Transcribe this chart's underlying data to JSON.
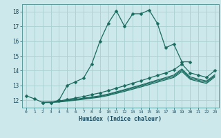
{
  "title": "",
  "xlabel": "Humidex (Indice chaleur)",
  "xlim": [
    -0.5,
    23.5
  ],
  "ylim": [
    11.5,
    18.5
  ],
  "xticks": [
    0,
    1,
    2,
    3,
    4,
    5,
    6,
    7,
    8,
    9,
    10,
    11,
    12,
    13,
    14,
    15,
    16,
    17,
    18,
    19,
    20,
    21,
    22,
    23
  ],
  "yticks": [
    12,
    13,
    14,
    15,
    16,
    17,
    18
  ],
  "background_color": "#cce8ea",
  "grid_color": "#aacfd2",
  "line_color": "#1a6b60",
  "curves": [
    {
      "x": [
        0,
        1,
        2,
        3,
        4,
        5,
        6,
        7,
        8,
        9,
        10,
        11,
        12,
        13,
        14,
        15,
        16,
        17,
        18,
        19,
        20
      ],
      "y": [
        12.3,
        12.1,
        11.85,
        11.85,
        12.0,
        13.0,
        13.25,
        13.5,
        14.45,
        16.0,
        17.2,
        18.05,
        17.0,
        17.85,
        17.85,
        18.1,
        17.2,
        15.55,
        15.8,
        14.6,
        14.6
      ],
      "marker": "D",
      "markersize": 2.5,
      "linewidth": 0.9
    },
    {
      "x": [
        2,
        3,
        4,
        5,
        6,
        7,
        8,
        9,
        10,
        11,
        12,
        13,
        14,
        15,
        16,
        17,
        18,
        19,
        20,
        21,
        22,
        23
      ],
      "y": [
        11.85,
        11.85,
        11.95,
        12.05,
        12.15,
        12.25,
        12.38,
        12.5,
        12.65,
        12.82,
        12.98,
        13.15,
        13.32,
        13.5,
        13.68,
        13.85,
        14.05,
        14.45,
        13.85,
        13.7,
        13.55,
        14.0
      ],
      "marker": "D",
      "markersize": 2.5,
      "linewidth": 0.9
    },
    {
      "x": [
        2,
        3,
        4,
        5,
        6,
        7,
        8,
        9,
        10,
        11,
        12,
        13,
        14,
        15,
        16,
        17,
        18,
        19,
        20,
        21,
        22,
        23
      ],
      "y": [
        11.85,
        11.88,
        11.92,
        12.0,
        12.07,
        12.14,
        12.22,
        12.3,
        12.42,
        12.57,
        12.72,
        12.88,
        13.03,
        13.2,
        13.37,
        13.53,
        13.7,
        14.12,
        13.58,
        13.43,
        13.3,
        13.72
      ],
      "marker": null,
      "markersize": 0,
      "linewidth": 0.9
    },
    {
      "x": [
        2,
        3,
        4,
        5,
        6,
        7,
        8,
        9,
        10,
        11,
        12,
        13,
        14,
        15,
        16,
        17,
        18,
        19,
        20,
        21,
        22,
        23
      ],
      "y": [
        11.85,
        11.87,
        11.9,
        11.97,
        12.04,
        12.11,
        12.18,
        12.26,
        12.38,
        12.52,
        12.67,
        12.82,
        12.97,
        13.14,
        13.3,
        13.46,
        13.62,
        14.03,
        13.5,
        13.35,
        13.22,
        13.65
      ],
      "marker": null,
      "markersize": 0,
      "linewidth": 0.9
    },
    {
      "x": [
        2,
        3,
        4,
        5,
        6,
        7,
        8,
        9,
        10,
        11,
        12,
        13,
        14,
        15,
        16,
        17,
        18,
        19,
        20,
        21,
        22,
        23
      ],
      "y": [
        11.85,
        11.86,
        11.88,
        11.94,
        12.0,
        12.07,
        12.14,
        12.21,
        12.32,
        12.46,
        12.6,
        12.75,
        12.9,
        13.06,
        13.22,
        13.38,
        13.54,
        13.94,
        13.42,
        13.27,
        13.14,
        13.57
      ],
      "marker": null,
      "markersize": 0,
      "linewidth": 0.9
    }
  ]
}
